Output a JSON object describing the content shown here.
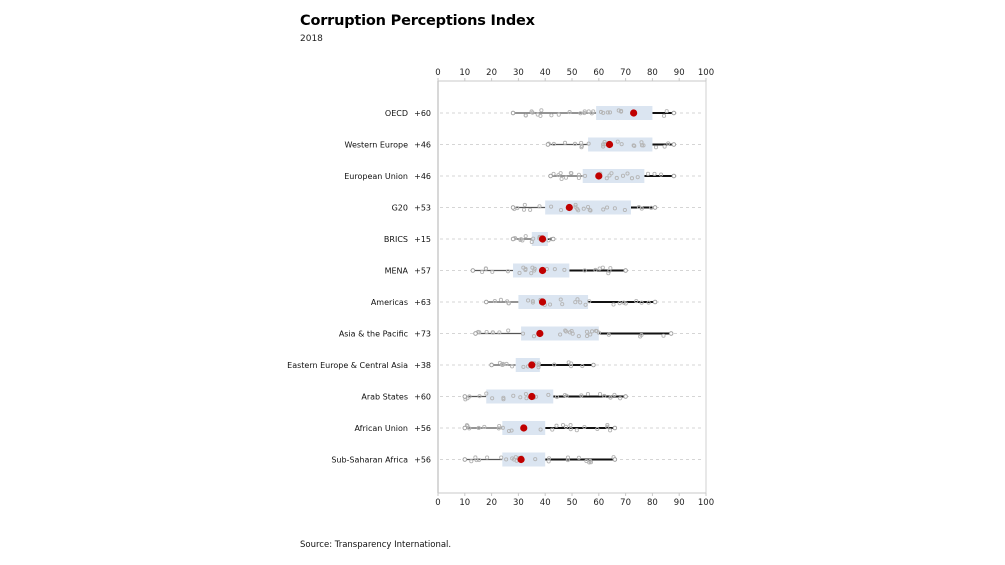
{
  "chart_data": {
    "type": "box",
    "title": "Corruption Perceptions Index",
    "subtitle": "2018",
    "source": "Source: Transparency International.",
    "xlim": [
      0,
      100
    ],
    "ticks": [
      0,
      10,
      20,
      30,
      40,
      50,
      60,
      70,
      80,
      90,
      100
    ],
    "colors": {
      "box": "#dbe5f1",
      "mean": "#c00000",
      "whisker": "#111111",
      "points": "#b5b5b5",
      "grid": "#c8c8c8"
    },
    "groups": [
      {
        "name": "OECD",
        "range_label": "+60",
        "min": 28,
        "q1": 59,
        "q3": 80,
        "mean": 73,
        "max": 88
      },
      {
        "name": "Western Europe",
        "range_label": "+46",
        "min": 41,
        "q1": 56,
        "q3": 80,
        "mean": 64,
        "max": 88
      },
      {
        "name": "European Union",
        "range_label": "+46",
        "min": 42,
        "q1": 54,
        "q3": 77,
        "mean": 60,
        "max": 88
      },
      {
        "name": "G20",
        "range_label": "+53",
        "min": 28,
        "q1": 40,
        "q3": 72,
        "mean": 49,
        "max": 81
      },
      {
        "name": "BRICS",
        "range_label": "+15",
        "min": 28,
        "q1": 35,
        "q3": 41,
        "mean": 39,
        "max": 43
      },
      {
        "name": "MENA",
        "range_label": "+57",
        "min": 13,
        "q1": 28,
        "q3": 49,
        "mean": 39,
        "max": 70
      },
      {
        "name": "Americas",
        "range_label": "+63",
        "min": 18,
        "q1": 30,
        "q3": 56,
        "mean": 39,
        "max": 81
      },
      {
        "name": "Asia & the Pacific",
        "range_label": "+73",
        "min": 14,
        "q1": 31,
        "q3": 60,
        "mean": 38,
        "max": 87
      },
      {
        "name": "Eastern Europe & Central Asia",
        "range_label": "+38",
        "min": 20,
        "q1": 29,
        "q3": 38,
        "mean": 35,
        "max": 58
      },
      {
        "name": "Arab States",
        "range_label": "+60",
        "min": 10,
        "q1": 18,
        "q3": 43,
        "mean": 35,
        "max": 70
      },
      {
        "name": "African Union",
        "range_label": "+56",
        "min": 10,
        "q1": 24,
        "q3": 40,
        "mean": 32,
        "max": 66
      },
      {
        "name": "Sub-Saharan Africa",
        "range_label": "+56",
        "min": 10,
        "q1": 24,
        "q3": 40,
        "mean": 31,
        "max": 66
      }
    ]
  }
}
